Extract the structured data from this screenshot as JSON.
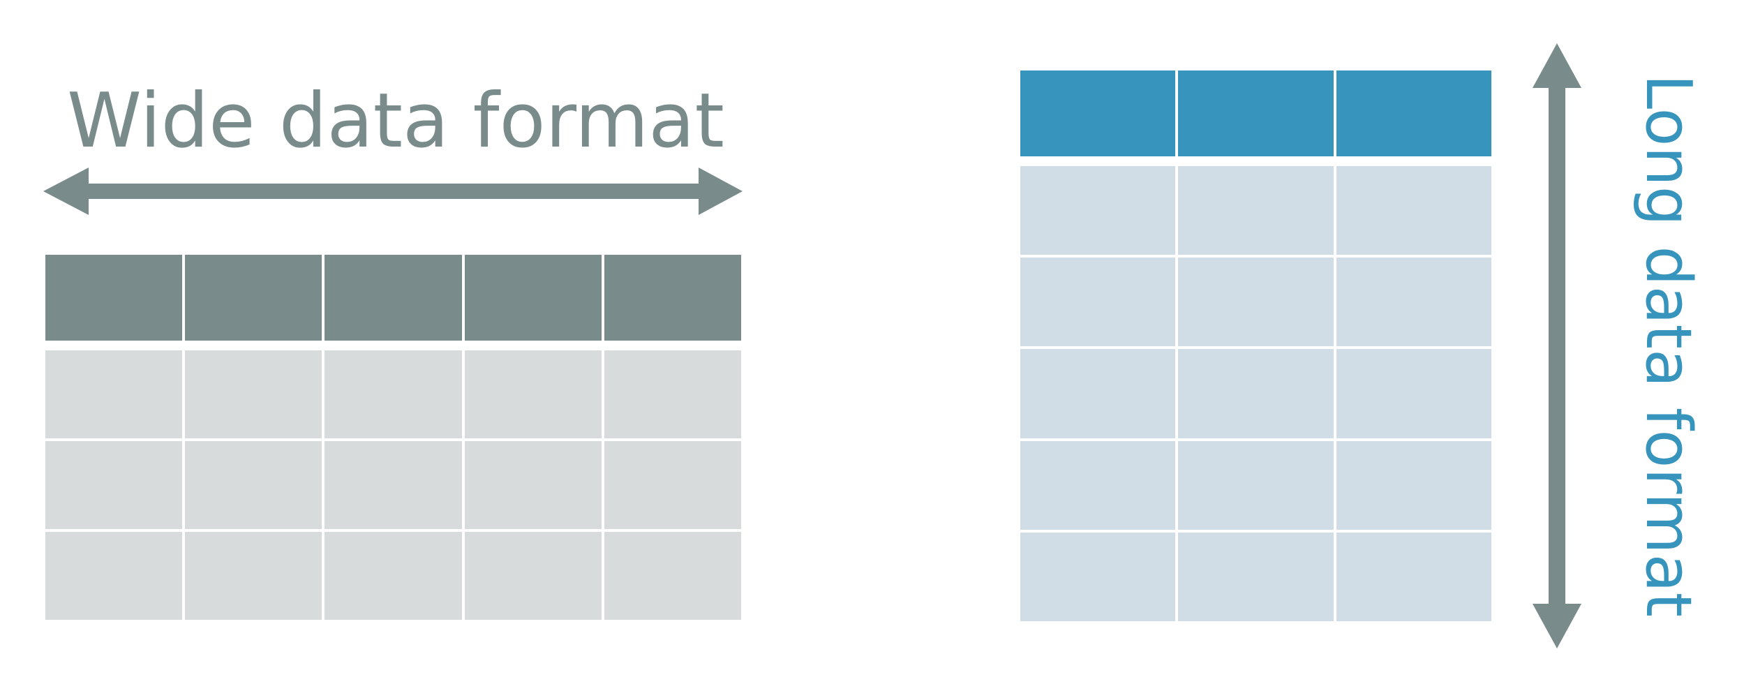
{
  "wide": {
    "label": "Wide data format",
    "columns": 5,
    "body_rows": 3,
    "header_color": "#7a8b8b",
    "body_color": "#d8dbdb",
    "label_color": "#7a8b8b",
    "arrow_color": "#7a8b8b"
  },
  "long": {
    "label": "Long data format",
    "columns": 3,
    "body_rows": 5,
    "header_color": "#3794bc",
    "body_color": "#d0dde7",
    "label_color": "#3794bc",
    "arrow_color": "#7a8b8b"
  }
}
